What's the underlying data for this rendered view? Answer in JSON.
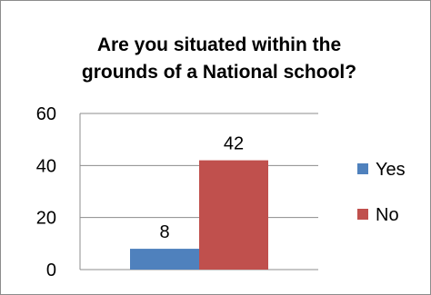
{
  "chart_data": {
    "type": "bar",
    "title_lines": [
      "Are you situated  within the",
      "grounds of a National school?"
    ],
    "categories": [
      ""
    ],
    "series": [
      {
        "name": "Yes",
        "color": "#4f81bd",
        "values": [
          8
        ]
      },
      {
        "name": "No",
        "color": "#c0504d",
        "values": [
          42
        ]
      }
    ],
    "ylim": [
      0,
      60
    ],
    "yticks": [
      0,
      20,
      40,
      60
    ],
    "grid": true,
    "legend": "right",
    "xlabel": "",
    "ylabel": ""
  }
}
